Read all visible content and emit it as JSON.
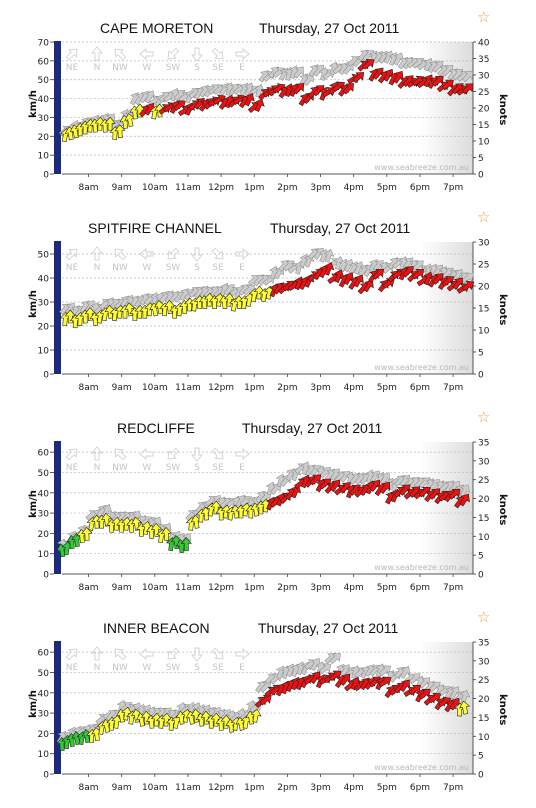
{
  "website": "www.seabreeze.com.au",
  "direction_legend": [
    "NE",
    "N",
    "NW",
    "W",
    "SW",
    "S",
    "SE",
    "E"
  ],
  "colors": {
    "accent_bar": "#1e2a7a",
    "gust_arrow": "#cccccc",
    "light_wind": "#33cc33",
    "moderate_wind": "#ffff33",
    "strong_wind": "#ee1111",
    "star": "#f0a030"
  },
  "chart_data": [
    {
      "type": "line",
      "title": "CAPE MORETON",
      "date": "Thursday, 27 Oct 2011",
      "ylabel": "km/h",
      "y2label": "knots",
      "ylim": [
        0,
        70
      ],
      "yticks": [
        0,
        10,
        20,
        30,
        40,
        50,
        60,
        70
      ],
      "y2lim": [
        0,
        40
      ],
      "y2ticks": [
        0,
        5,
        10,
        15,
        20,
        25,
        30,
        35,
        40
      ],
      "xticks": [
        "8am",
        "9am",
        "10am",
        "11am",
        "12pm",
        "1pm",
        "2pm",
        "3pm",
        "4pm",
        "5pm",
        "6pm",
        "7pm"
      ],
      "x_hours": [
        7.3,
        7.6,
        7.9,
        8.2,
        8.5,
        8.8,
        9.1,
        9.4,
        9.7,
        10.0,
        10.3,
        10.6,
        10.9,
        11.2,
        11.5,
        11.8,
        12.1,
        12.4,
        12.7,
        13.0,
        13.3,
        13.6,
        13.9,
        14.2,
        14.5,
        14.8,
        15.1,
        15.4,
        15.7,
        16.0,
        16.3,
        16.6,
        16.9,
        17.2,
        17.5,
        17.8,
        18.1,
        18.4,
        18.7,
        19.0,
        19.3
      ],
      "wind_kmh": [
        22,
        24,
        26,
        27,
        27,
        23,
        29,
        34,
        35,
        34,
        36,
        37,
        35,
        38,
        38,
        40,
        39,
        40,
        40,
        37,
        44,
        46,
        45,
        46,
        41,
        45,
        44,
        47,
        46,
        52,
        59,
        54,
        53,
        52,
        50,
        50,
        50,
        50,
        48,
        46,
        46
      ],
      "gust_kmh": [
        24,
        26,
        28,
        29,
        30,
        27,
        32,
        41,
        42,
        40,
        42,
        43,
        42,
        44,
        45,
        46,
        46,
        46,
        46,
        45,
        53,
        55,
        54,
        55,
        51,
        56,
        54,
        57,
        57,
        61,
        64,
        63,
        63,
        62,
        60,
        60,
        59,
        58,
        56,
        54,
        53
      ],
      "grid": true,
      "grid_lines_kmh": [
        10,
        20,
        30,
        40,
        50,
        60
      ]
    },
    {
      "type": "line",
      "title": "SPITFIRE CHANNEL",
      "date": "Thursday, 27 Oct 2011",
      "ylabel": "km/h",
      "y2label": "knots",
      "ylim": [
        0,
        55
      ],
      "yticks": [
        0,
        10,
        20,
        30,
        40,
        50
      ],
      "y2lim": [
        0,
        30
      ],
      "y2ticks": [
        0,
        5,
        10,
        15,
        20,
        25,
        30
      ],
      "xticks": [
        "8am",
        "9am",
        "10am",
        "11am",
        "12pm",
        "1pm",
        "2pm",
        "3pm",
        "4pm",
        "5pm",
        "6pm",
        "7pm"
      ],
      "x_hours": [
        7.3,
        7.6,
        7.9,
        8.2,
        8.5,
        8.8,
        9.1,
        9.4,
        9.7,
        10.0,
        10.3,
        10.6,
        10.9,
        11.2,
        11.5,
        11.8,
        12.1,
        12.4,
        12.7,
        13.0,
        13.3,
        13.6,
        13.9,
        14.2,
        14.5,
        14.8,
        15.1,
        15.4,
        15.7,
        16.0,
        16.3,
        16.6,
        16.9,
        17.2,
        17.5,
        17.8,
        18.1,
        18.4,
        18.7,
        19.0,
        19.3
      ],
      "wind_kmh": [
        24,
        23,
        25,
        24,
        26,
        26,
        27,
        26,
        27,
        28,
        28,
        27,
        29,
        30,
        31,
        31,
        31,
        30,
        31,
        34,
        34,
        36,
        37,
        38,
        39,
        42,
        44,
        41,
        40,
        39,
        37,
        42,
        38,
        42,
        43,
        42,
        40,
        40,
        39,
        38,
        37
      ],
      "gust_kmh": [
        28,
        27,
        29,
        28,
        30,
        30,
        31,
        31,
        32,
        32,
        33,
        33,
        34,
        35,
        35,
        35,
        36,
        35,
        36,
        40,
        40,
        43,
        46,
        45,
        48,
        51,
        50,
        47,
        46,
        45,
        44,
        46,
        45,
        47,
        47,
        46,
        44,
        44,
        43,
        42,
        41
      ],
      "grid": true,
      "grid_lines_kmh": [
        10,
        20,
        30,
        40,
        50
      ]
    },
    {
      "type": "line",
      "title": "REDCLIFFE",
      "date": "Thursday, 27 Oct 2011",
      "ylabel": "km/h",
      "y2label": "knots",
      "ylim": [
        0,
        65
      ],
      "yticks": [
        0,
        10,
        20,
        30,
        40,
        50,
        60
      ],
      "y2lim": [
        0,
        35
      ],
      "y2ticks": [
        0,
        5,
        10,
        15,
        20,
        25,
        30,
        35
      ],
      "xticks": [
        "8am",
        "9am",
        "10am",
        "11am",
        "12pm",
        "1pm",
        "2pm",
        "3pm",
        "4pm",
        "5pm",
        "6pm",
        "7pm"
      ],
      "x_hours": [
        7.2,
        7.5,
        7.8,
        8.1,
        8.4,
        8.7,
        9.0,
        9.3,
        9.6,
        9.9,
        10.2,
        10.5,
        10.8,
        11.1,
        11.4,
        11.7,
        12.0,
        12.3,
        12.6,
        12.9,
        13.2,
        13.5,
        13.8,
        14.1,
        14.4,
        14.7,
        15.0,
        15.3,
        15.6,
        15.9,
        16.2,
        16.5,
        16.8,
        17.1,
        17.4,
        17.7,
        18.0,
        18.3,
        18.6,
        18.9,
        19.2
      ],
      "wind_kmh": [
        13,
        17,
        20,
        26,
        27,
        25,
        25,
        25,
        23,
        22,
        20,
        16,
        15,
        26,
        30,
        33,
        31,
        31,
        32,
        32,
        34,
        36,
        38,
        41,
        46,
        47,
        45,
        44,
        43,
        42,
        42,
        44,
        43,
        39,
        42,
        41,
        41,
        40,
        39,
        40,
        37
      ],
      "gust_kmh": [
        15,
        19,
        22,
        30,
        32,
        29,
        29,
        29,
        27,
        26,
        23,
        19,
        18,
        30,
        34,
        37,
        36,
        36,
        37,
        36,
        39,
        43,
        47,
        50,
        53,
        52,
        51,
        50,
        49,
        48,
        48,
        49,
        48,
        45,
        47,
        46,
        46,
        45,
        44,
        44,
        42
      ],
      "grid": true,
      "grid_lines_kmh": [
        10,
        20,
        30,
        40,
        50,
        60
      ]
    },
    {
      "type": "line",
      "title": "INNER BEACON",
      "date": "Thursday, 27 Oct 2011",
      "ylabel": "km/h",
      "y2label": "knots",
      "ylim": [
        0,
        65
      ],
      "yticks": [
        0,
        10,
        20,
        30,
        40,
        50,
        60
      ],
      "y2lim": [
        0,
        35
      ],
      "y2ticks": [
        0,
        5,
        10,
        15,
        20,
        25,
        30,
        35
      ],
      "xticks": [
        "8am",
        "9am",
        "10am",
        "11am",
        "12pm",
        "1pm",
        "2pm",
        "3pm",
        "4pm",
        "5pm",
        "6pm",
        "7pm"
      ],
      "x_hours": [
        7.2,
        7.5,
        7.8,
        8.1,
        8.4,
        8.7,
        9.0,
        9.3,
        9.6,
        9.9,
        10.2,
        10.5,
        10.8,
        11.1,
        11.4,
        11.7,
        12.0,
        12.3,
        12.6,
        12.9,
        13.2,
        13.5,
        13.8,
        14.1,
        14.4,
        14.7,
        15.0,
        15.3,
        15.6,
        15.9,
        16.2,
        16.5,
        16.8,
        17.1,
        17.4,
        17.7,
        18.0,
        18.3,
        18.6,
        18.9,
        19.2
      ],
      "wind_kmh": [
        16,
        18,
        19,
        20,
        24,
        26,
        30,
        29,
        28,
        27,
        27,
        26,
        29,
        29,
        28,
        27,
        26,
        25,
        26,
        29,
        37,
        42,
        43,
        45,
        46,
        48,
        47,
        49,
        47,
        45,
        45,
        46,
        46,
        42,
        44,
        42,
        40,
        38,
        36,
        35,
        33
      ],
      "gust_kmh": [
        19,
        21,
        22,
        23,
        28,
        30,
        34,
        33,
        32,
        31,
        31,
        30,
        33,
        33,
        32,
        31,
        30,
        29,
        30,
        34,
        44,
        48,
        51,
        52,
        53,
        55,
        53,
        58,
        52,
        51,
        51,
        52,
        52,
        49,
        51,
        48,
        46,
        44,
        42,
        41,
        39
      ],
      "grid": true,
      "grid_lines_kmh": [
        10,
        20,
        30,
        40,
        50,
        60
      ]
    }
  ]
}
